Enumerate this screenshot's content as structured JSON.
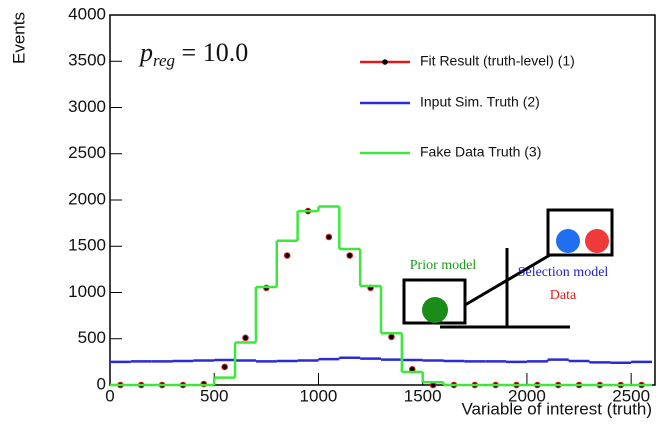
{
  "chart_data": {
    "type": "histogram",
    "xlabel": "Variable of interest (truth)",
    "ylabel": "Events",
    "annotation": {
      "symbol": "p",
      "subscript": "reg",
      "text": " = 10.0"
    },
    "inset_labels": {
      "prior": "Prior model",
      "selection": "Selection model",
      "data": "Data"
    },
    "bins": [
      0,
      100,
      200,
      300,
      400,
      500,
      600,
      700,
      800,
      900,
      1000,
      1100,
      1200,
      1300,
      1400,
      1500,
      1600,
      1700,
      1800,
      1900,
      2000,
      2100,
      2200,
      2300,
      2400,
      2500,
      2600
    ],
    "series": [
      {
        "name": "Fit Result (truth-level) (1)",
        "color": "#e0191d",
        "style": "points",
        "values": [
          0,
          0,
          0,
          0,
          10,
          195,
          510,
          1050,
          1400,
          1880,
          1600,
          1400,
          1050,
          520,
          170,
          0,
          0,
          0,
          0,
          0,
          0,
          0,
          0,
          0,
          0,
          0
        ]
      },
      {
        "name": "Input Sim. Truth (2)",
        "color": "#2b2bd6",
        "style": "step",
        "values": [
          250,
          255,
          255,
          260,
          265,
          270,
          265,
          255,
          260,
          265,
          280,
          295,
          285,
          275,
          270,
          265,
          260,
          255,
          255,
          250,
          255,
          275,
          260,
          245,
          240,
          250
        ]
      },
      {
        "name": "Fake Data Truth (3)",
        "color": "#3ee63e",
        "style": "step",
        "values": [
          0,
          0,
          0,
          0,
          0,
          80,
          460,
          1060,
          1560,
          1880,
          1930,
          1470,
          1070,
          560,
          140,
          30,
          0,
          0,
          0,
          0,
          0,
          0,
          0,
          0,
          0,
          0
        ]
      }
    ],
    "xlim": [
      0,
      2600
    ],
    "ylim": [
      0,
      4000
    ],
    "xticks": [
      0,
      500,
      1000,
      1500,
      2000,
      2500
    ],
    "yticks": [
      0,
      500,
      1000,
      1500,
      2000,
      2500,
      3000,
      3500,
      4000
    ]
  }
}
